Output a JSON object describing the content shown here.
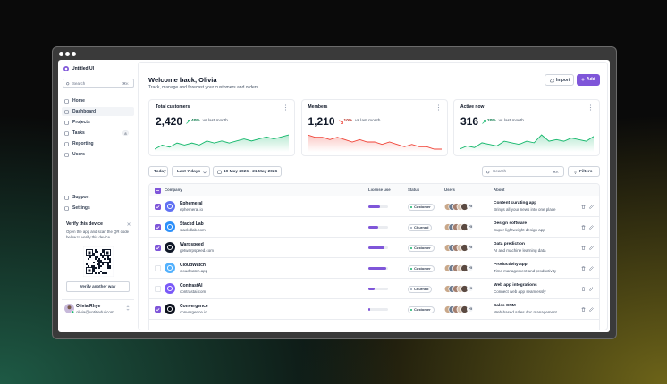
{
  "sidebar": {
    "brand": "Untitled UI",
    "search": {
      "placeholder": "Search",
      "shortcut": "⌘K"
    },
    "nav": [
      {
        "label": "Home"
      },
      {
        "label": "Dashboard",
        "active": true
      },
      {
        "label": "Projects"
      },
      {
        "label": "Tasks",
        "badge": 8
      },
      {
        "label": "Reporting"
      },
      {
        "label": "Users"
      }
    ],
    "footer_nav": [
      {
        "label": "Support"
      },
      {
        "label": "Settings"
      }
    ],
    "verify": {
      "title": "Verify this device",
      "text": "Open the app and scan the QR code below to verify this device.",
      "button": "Verify another way"
    },
    "user": {
      "name": "Olivia Rhye",
      "email": "olivia@untitledui.com"
    }
  },
  "header": {
    "title": "Welcome back, Olivia",
    "subtitle": "Track, manage and forecast your customers and orders.",
    "import": "Import",
    "add": "Add"
  },
  "stats": [
    {
      "label": "Total customers",
      "value": "2,420",
      "change": "40%",
      "direction": "up",
      "note": "vs last month",
      "trend": [
        10,
        12,
        11,
        13,
        12,
        13,
        12,
        14,
        13,
        14,
        13,
        14,
        15,
        14,
        15,
        16,
        15,
        16,
        17
      ]
    },
    {
      "label": "Members",
      "value": "1,210",
      "change": "10%",
      "direction": "down",
      "note": "vs last month",
      "trend": [
        18,
        17,
        17,
        16,
        17,
        16,
        15,
        16,
        15,
        15,
        14,
        15,
        14,
        13,
        14,
        13,
        13,
        12,
        12
      ]
    },
    {
      "label": "Active now",
      "value": "316",
      "change": "20%",
      "direction": "up",
      "note": "vs last month",
      "trend": [
        8,
        10,
        9,
        12,
        11,
        10,
        13,
        12,
        11,
        13,
        12,
        17,
        13,
        14,
        13,
        15,
        14,
        13,
        16
      ]
    }
  ],
  "filters": {
    "today": "Today",
    "range": "Last 7 days",
    "dates": "19 May 2026 - 21 May 2026",
    "search": "Search",
    "shortcut": "⌘K",
    "filters": "Filters"
  },
  "table": {
    "columns": [
      "Company",
      "License use",
      "Status",
      "Users",
      "About"
    ],
    "rows": [
      {
        "checked": true,
        "name": "Ephemeral",
        "domain": "ephemeral.io",
        "color": "#6172f3",
        "license": 60,
        "status": "Customer",
        "users_more": "+5",
        "about": "Content curating app",
        "about_sub": "Brings all your news into one place"
      },
      {
        "checked": true,
        "name": "Stackd Lab",
        "domain": "stackdlab.com",
        "color": "#2e90fa",
        "license": 50,
        "status": "Churned",
        "users_more": "+5",
        "about": "Design software",
        "about_sub": "Super lightweight design app"
      },
      {
        "checked": true,
        "name": "Warpspeed",
        "domain": "getwarpspeed.com",
        "color": "#101828",
        "license": 80,
        "status": "Customer",
        "users_more": "+5",
        "about": "Data prediction",
        "about_sub": "AI and machine learning data"
      },
      {
        "checked": false,
        "name": "CloudWatch",
        "domain": "cloudwatch.app",
        "color": "#53b1fd",
        "license": 90,
        "status": "Customer",
        "users_more": "+5",
        "about": "Productivity app",
        "about_sub": "Time management and productivity"
      },
      {
        "checked": false,
        "name": "ContrastAI",
        "domain": "contrastai.com",
        "color": "#7a5af8",
        "license": 30,
        "status": "Churned",
        "users_more": "+5",
        "about": "Web app integrations",
        "about_sub": "Connect web app seamlessly"
      },
      {
        "checked": true,
        "name": "Convergence",
        "domain": "convergence.io",
        "color": "#0c111d",
        "license": 10,
        "status": "Customer",
        "users_more": "+5",
        "about": "Sales CRM",
        "about_sub": "Web-based sales doc management"
      }
    ]
  }
}
